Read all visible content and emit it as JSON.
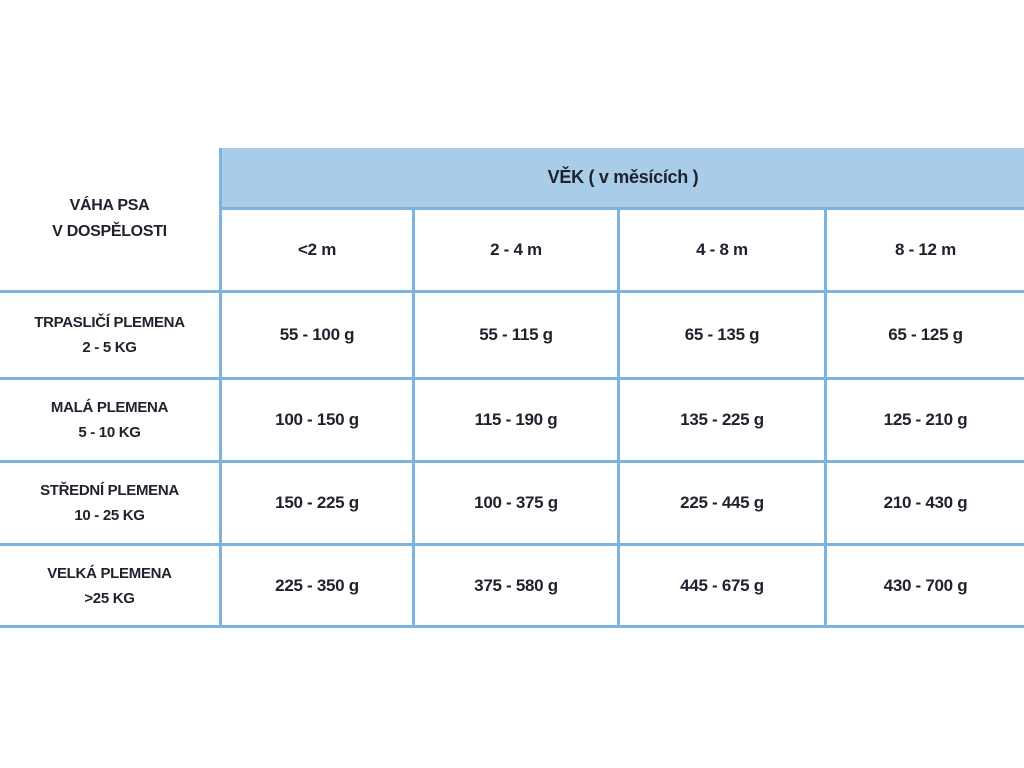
{
  "chart_data": {
    "type": "table",
    "title": "VĚK ( v měsících )",
    "corner": [
      "VÁHA PSA",
      "V DOSPĚLOSTI"
    ],
    "columns": [
      "<2 m",
      "2 - 4 m",
      "4 - 8 m",
      "8 - 12 m"
    ],
    "rows": [
      {
        "label": [
          "TRPASLIČÍ PLEMENA",
          "2 - 5 KG"
        ],
        "values": [
          "55 - 100 g",
          "55 - 115 g",
          "65 - 135 g",
          "65 - 125 g"
        ]
      },
      {
        "label": [
          "MALÁ PLEMENA",
          "5 - 10 KG"
        ],
        "values": [
          "100 - 150 g",
          "115 - 190 g",
          "135 - 225 g",
          "125 - 210 g"
        ]
      },
      {
        "label": [
          "STŘEDNÍ PLEMENA",
          "10 - 25 KG"
        ],
        "values": [
          "150 - 225 g",
          "100 - 375 g",
          "225 - 445 g",
          "210 - 430 g"
        ]
      },
      {
        "label": [
          "VELKÁ PLEMENA",
          ">25 KG"
        ],
        "values": [
          "225 - 350 g",
          "375 - 580 g",
          "445 - 675 g",
          "430 - 700 g"
        ]
      }
    ],
    "layout": {
      "header_bg": "#a9cce9",
      "border_color": "#7db3de",
      "text_color": "#1e222c",
      "grid": "on"
    }
  }
}
